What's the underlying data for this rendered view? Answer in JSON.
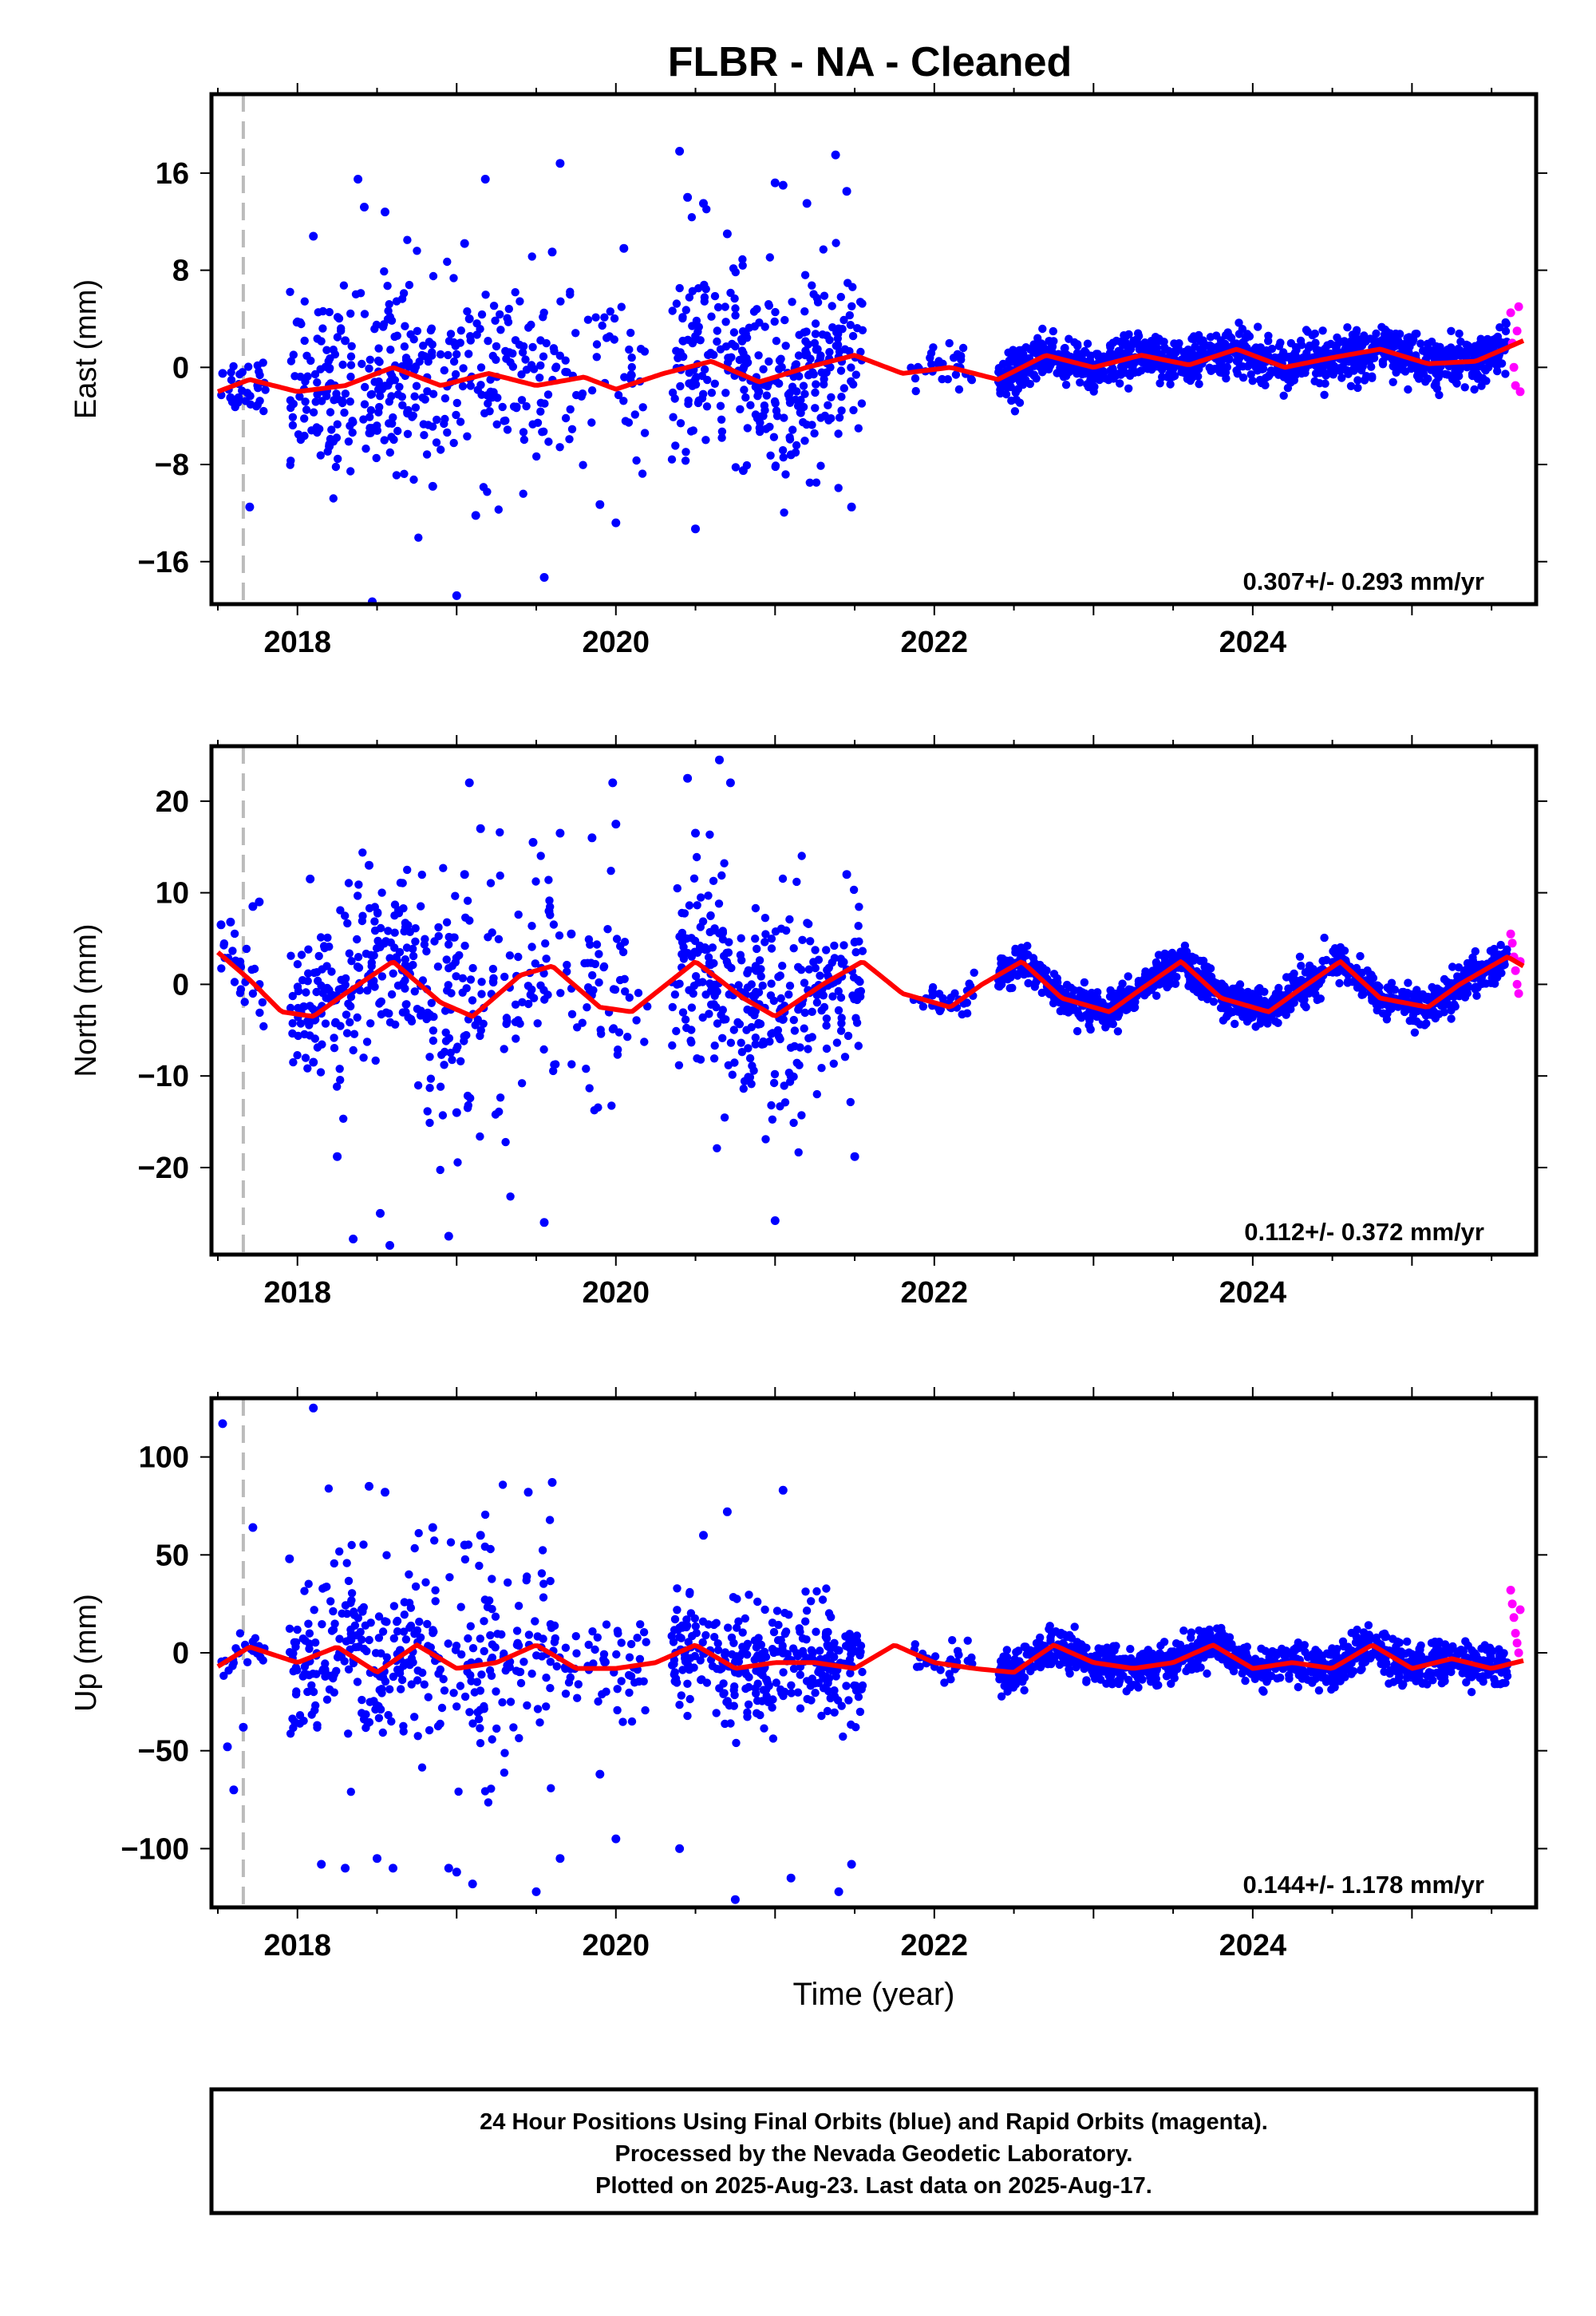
{
  "title": "FLBR  - NA - Cleaned",
  "colors": {
    "final": "#0000ff",
    "rapid": "#ff00ff",
    "fit": "#ff0000",
    "marker": "#bbbbbb",
    "axis": "#000000"
  },
  "footer": [
    "24 Hour Positions Using Final Orbits (blue) and Rapid Orbits (magenta).",
    "Processed by the Nevada Geodetic Laboratory.",
    "Plotted on 2025-Aug-23. Last data on 2025-Aug-17."
  ],
  "chart_data": [
    {
      "type": "scatter",
      "panel": "east",
      "ylabel": "East (mm)",
      "xlabel": "",
      "xlim": [
        2017.46,
        2025.78
      ],
      "ylim": [
        -19.5,
        22.5
      ],
      "xticks": [
        2018,
        2020,
        2022,
        2024
      ],
      "xtick_labels": [
        "2018",
        "2020",
        "2022",
        "2024"
      ],
      "yticks": [
        -16,
        -8,
        0,
        8,
        16
      ],
      "ytick_labels": [
        "−16",
        "−8",
        "0",
        "8",
        "16"
      ],
      "rate_text": "0.307+/- 0.293 mm/yr",
      "antenna_change": 2017.66,
      "series": [
        {
          "name": "Final Orbits",
          "color": "#0000ff",
          "x": [
            2017.53,
            2017.58,
            2017.63,
            2017.7,
            2017.75,
            2018.1,
            2018.2,
            2018.3,
            2018.38,
            2018.42,
            2018.47,
            2018.5,
            2018.55,
            2018.85,
            2019.0,
            2019.05,
            2019.08,
            2019.12,
            2019.18,
            2019.55,
            2019.6,
            2019.65,
            2019.9,
            2020.0,
            2020.05,
            2020.4,
            2020.45,
            2020.5,
            2020.55,
            2020.7,
            2020.8,
            2021.0,
            2021.05,
            2021.1,
            2021.2,
            2021.38,
            2021.45,
            2021.48
          ],
          "y": [
            -0.5,
            -2.5,
            -2.5,
            -11.5,
            -1.5,
            10.8,
            -6.5,
            2.2,
            15.5,
            13.2,
            -19.3,
            -5.2,
            12.8,
            -9.8,
            -18.8,
            10.2,
            4.0,
            -12.2,
            15.5,
            -17.3,
            9.5,
            16.8,
            -11.3,
            -12.8,
            9.8,
            17.8,
            14.0,
            -13.3,
            13.5,
            11.0,
            -8.5,
            15.2,
            15.0,
            -7.2,
            13.5,
            17.5,
            14.5,
            -11.5
          ]
        },
        {
          "name": "Rapid Orbits",
          "color": "#ff00ff",
          "x": [
            2025.62,
            2025.63,
            2025.64,
            2025.65,
            2025.66,
            2025.67,
            2025.68
          ],
          "y": [
            4.5,
            2.0,
            0.0,
            -1.5,
            3.0,
            5.0,
            -2.0
          ]
        }
      ],
      "fit": {
        "name": "Fit",
        "color": "#ff0000",
        "x": [
          2017.5,
          2017.7,
          2018.0,
          2018.3,
          2018.6,
          2018.9,
          2019.2,
          2019.5,
          2019.8,
          2020.0,
          2020.3,
          2020.6,
          2020.9,
          2021.2,
          2021.5,
          2021.8,
          2022.1,
          2022.4,
          2022.7,
          2023.0,
          2023.3,
          2023.6,
          2023.9,
          2024.2,
          2024.5,
          2024.8,
          2025.1,
          2025.4,
          2025.7
        ],
        "y": [
          -2.0,
          -1.0,
          -2.0,
          -1.5,
          0.0,
          -1.5,
          -0.5,
          -1.5,
          -0.8,
          -1.8,
          -0.5,
          0.5,
          -1.2,
          0.0,
          1.0,
          -0.5,
          0.0,
          -1.0,
          1.0,
          0.0,
          1.0,
          0.2,
          1.5,
          0.0,
          0.8,
          1.5,
          0.3,
          0.5,
          2.2
        ]
      },
      "cloud_segments": [
        {
          "x": [
            2017.52,
            2017.8
          ],
          "sigma": 1.3,
          "count": 28
        },
        {
          "x": [
            2017.95,
            2018.75
          ],
          "sigma": 3.8,
          "count": 200
        },
        {
          "x": [
            2018.75,
            2019.6
          ],
          "sigma": 3.8,
          "count": 150
        },
        {
          "x": [
            2019.6,
            2020.2
          ],
          "sigma": 3.0,
          "count": 60
        },
        {
          "x": [
            2020.35,
            2021.55
          ],
          "sigma": 4.0,
          "count": 320
        },
        {
          "x": [
            2021.85,
            2022.25
          ],
          "sigma": 0.9,
          "count": 30
        },
        {
          "x": [
            2022.4,
            2025.6
          ],
          "sigma": 1.0,
          "count": 1100
        }
      ]
    },
    {
      "type": "scatter",
      "panel": "north",
      "ylabel": "North (mm)",
      "xlabel": "",
      "xlim": [
        2017.46,
        2025.78
      ],
      "ylim": [
        -29.5,
        26.0
      ],
      "xticks": [
        2018,
        2020,
        2022,
        2024
      ],
      "xtick_labels": [
        "2018",
        "2020",
        "2022",
        "2024"
      ],
      "yticks": [
        -20,
        -10,
        0,
        10,
        20
      ],
      "ytick_labels": [
        "−20",
        "−10",
        "0",
        "10",
        "20"
      ],
      "rate_text": "0.112+/- 0.372 mm/yr",
      "antenna_change": 2017.66,
      "series": [
        {
          "name": "Final Orbits",
          "color": "#0000ff",
          "x": [
            2017.52,
            2017.58,
            2017.72,
            2017.76,
            2018.08,
            2018.1,
            2018.25,
            2018.35,
            2018.45,
            2018.52,
            2018.58,
            2018.95,
            2019.0,
            2019.05,
            2019.08,
            2019.15,
            2019.48,
            2019.55,
            2019.58,
            2019.65,
            2019.72,
            2019.85,
            2019.98,
            2020.0,
            2020.45,
            2020.5,
            2020.65,
            2020.72,
            2021.0,
            2021.1,
            2021.45,
            2021.5
          ],
          "y": [
            6.5,
            6.8,
            8.5,
            9.0,
            11.5,
            -8.5,
            -18.8,
            -27.8,
            13.0,
            -25.0,
            -28.5,
            -27.5,
            -14.0,
            12.0,
            22.0,
            17.0,
            15.5,
            -26.0,
            8.0,
            16.5,
            5.5,
            16.0,
            22.0,
            17.5,
            22.5,
            16.5,
            24.5,
            22.0,
            -25.8,
            -10.0,
            12.0,
            -18.8
          ]
        },
        {
          "name": "Rapid Orbits",
          "color": "#ff00ff",
          "x": [
            2025.62,
            2025.63,
            2025.64,
            2025.65,
            2025.66,
            2025.67,
            2025.68
          ],
          "y": [
            5.5,
            4.5,
            3.0,
            1.5,
            0.0,
            -1.0,
            2.5
          ]
        }
      ],
      "fit": {
        "name": "Fit",
        "color": "#ff0000",
        "x": [
          2017.5,
          2017.7,
          2017.9,
          2018.1,
          2018.3,
          2018.6,
          2018.9,
          2019.1,
          2019.4,
          2019.6,
          2019.9,
          2020.1,
          2020.5,
          2020.8,
          2021.0,
          2021.3,
          2021.55,
          2021.8,
          2022.1,
          2022.3,
          2022.55,
          2022.8,
          2023.1,
          2023.3,
          2023.55,
          2023.8,
          2024.1,
          2024.3,
          2024.55,
          2024.8,
          2025.1,
          2025.3,
          2025.6,
          2025.7
        ],
        "y": [
          3.5,
          0.5,
          -3.0,
          -3.5,
          -1.0,
          2.5,
          -2.0,
          -3.5,
          1.0,
          2.0,
          -2.5,
          -3.0,
          2.5,
          -1.5,
          -3.5,
          0.0,
          2.5,
          -1.0,
          -2.5,
          0.0,
          2.5,
          -1.5,
          -3.0,
          -0.5,
          2.5,
          -1.5,
          -3.0,
          -0.5,
          2.5,
          -1.5,
          -2.5,
          0.0,
          3.0,
          2.0
        ]
      },
      "cloud_segments": [
        {
          "x": [
            2017.52,
            2017.8
          ],
          "sigma": 2.0,
          "count": 25
        },
        {
          "x": [
            2017.95,
            2018.75
          ],
          "sigma": 4.5,
          "count": 200
        },
        {
          "x": [
            2018.75,
            2019.6
          ],
          "sigma": 7.0,
          "count": 150
        },
        {
          "x": [
            2019.6,
            2020.2
          ],
          "sigma": 6.0,
          "count": 60
        },
        {
          "x": [
            2020.35,
            2021.55
          ],
          "sigma": 5.5,
          "count": 320
        },
        {
          "x": [
            2021.85,
            2022.25
          ],
          "sigma": 0.9,
          "count": 30
        },
        {
          "x": [
            2022.4,
            2025.6
          ],
          "sigma": 1.0,
          "count": 1100
        }
      ]
    },
    {
      "type": "scatter",
      "panel": "up",
      "ylabel": "Up (mm)",
      "xlabel": "Time (year)",
      "xlim": [
        2017.46,
        2025.78
      ],
      "ylim": [
        -130.0,
        130.0
      ],
      "xticks": [
        2018,
        2020,
        2022,
        2024
      ],
      "xtick_labels": [
        "2018",
        "2020",
        "2022",
        "2024"
      ],
      "yticks": [
        -100,
        -50,
        0,
        50,
        100
      ],
      "ytick_labels": [
        "−100",
        "−50",
        "0",
        "50",
        "100"
      ],
      "rate_text": "0.144+/- 1.178 mm/yr",
      "antenna_change": 2017.66,
      "series": [
        {
          "name": "Final Orbits",
          "color": "#0000ff",
          "x": [
            2017.53,
            2017.56,
            2017.6,
            2017.66,
            2017.72,
            2017.95,
            2018.1,
            2018.15,
            2018.3,
            2018.45,
            2018.5,
            2018.55,
            2018.6,
            2018.85,
            2018.95,
            2019.0,
            2019.05,
            2019.1,
            2019.15,
            2019.45,
            2019.5,
            2019.6,
            2019.65,
            2019.9,
            2020.0,
            2020.4,
            2020.55,
            2020.7,
            2020.75,
            2021.05,
            2021.1,
            2021.4,
            2021.48
          ],
          "y": [
            117.0,
            -48.0,
            -70.0,
            -38.0,
            64.0,
            48.0,
            125.0,
            -108.0,
            -110.0,
            85.0,
            -105.0,
            82.0,
            -110.0,
            64.0,
            -110.0,
            -112.0,
            55.0,
            -118.0,
            60.0,
            82.0,
            -122.0,
            87.0,
            -105.0,
            -62.0,
            -95.0,
            -100.0,
            60.0,
            72.0,
            -126.0,
            83.0,
            -115.0,
            -122.0,
            -108.0
          ]
        },
        {
          "name": "Rapid Orbits",
          "color": "#ff00ff",
          "x": [
            2025.62,
            2025.63,
            2025.64,
            2025.65,
            2025.66,
            2025.67,
            2025.68
          ],
          "y": [
            32.0,
            25.0,
            18.0,
            10.0,
            5.0,
            0.0,
            22.0
          ]
        }
      ],
      "fit": {
        "name": "Fit",
        "color": "#ff0000",
        "x": [
          2017.5,
          2017.7,
          2018.0,
          2018.25,
          2018.5,
          2018.75,
          2019.0,
          2019.25,
          2019.5,
          2019.75,
          2020.0,
          2020.25,
          2020.5,
          2020.75,
          2021.0,
          2021.25,
          2021.5,
          2021.75,
          2022.0,
          2022.25,
          2022.5,
          2022.75,
          2023.0,
          2023.25,
          2023.5,
          2023.75,
          2024.0,
          2024.25,
          2024.5,
          2024.75,
          2025.0,
          2025.25,
          2025.5,
          2025.7
        ],
        "y": [
          -7.0,
          3.0,
          -5.0,
          3.0,
          -10.0,
          4.0,
          -8.0,
          -5.0,
          4.0,
          -8.0,
          -8.0,
          -5.0,
          4.0,
          -8.0,
          -5.0,
          -5.0,
          -8.0,
          4.0,
          -5.0,
          -8.0,
          -10.0,
          4.0,
          -5.0,
          -8.0,
          -5.0,
          4.0,
          -8.0,
          -5.0,
          -8.0,
          4.0,
          -8.0,
          -3.0,
          -8.0,
          -4.0
        ]
      },
      "cloud_segments": [
        {
          "x": [
            2017.52,
            2017.8
          ],
          "sigma": 4.0,
          "count": 25
        },
        {
          "x": [
            2017.95,
            2018.75
          ],
          "sigma": 25.0,
          "count": 200
        },
        {
          "x": [
            2018.75,
            2019.6
          ],
          "sigma": 30.0,
          "count": 150
        },
        {
          "x": [
            2019.6,
            2020.2
          ],
          "sigma": 12.0,
          "count": 60
        },
        {
          "x": [
            2020.35,
            2021.55
          ],
          "sigma": 14.0,
          "count": 320
        },
        {
          "x": [
            2021.85,
            2022.25
          ],
          "sigma": 5.0,
          "count": 30
        },
        {
          "x": [
            2022.4,
            2025.6
          ],
          "sigma": 5.0,
          "count": 1100
        }
      ]
    }
  ]
}
